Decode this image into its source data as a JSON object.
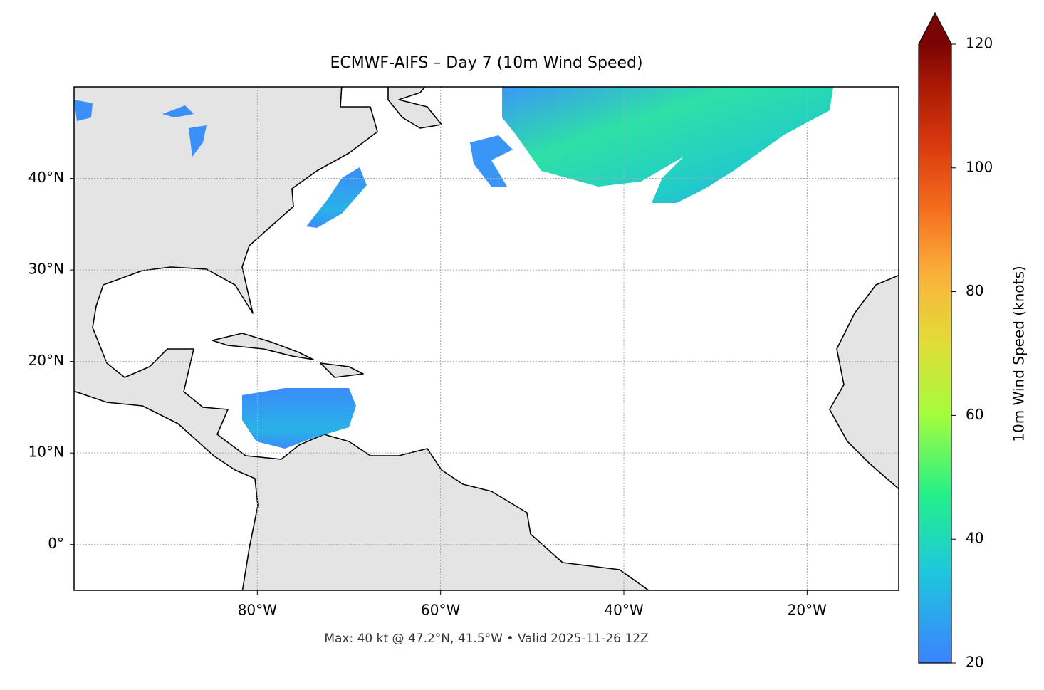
{
  "chart_data": {
    "type": "map",
    "title": "ECMWF-AIFS – Day 7 (10m Wind Speed)",
    "annotation": "Max: 40 kt @ 47.2°N, 41.5°W • Valid 2025-11-26 12Z",
    "xlim": [
      -100,
      -10
    ],
    "ylim": [
      -5,
      50
    ],
    "xticks": [
      {
        "value": -80,
        "label": "80°W"
      },
      {
        "value": -60,
        "label": "60°W"
      },
      {
        "value": -40,
        "label": "40°W"
      },
      {
        "value": -20,
        "label": "20°W"
      }
    ],
    "yticks": [
      {
        "value": 0,
        "label": "0°"
      },
      {
        "value": 10,
        "label": "10°N"
      },
      {
        "value": 20,
        "label": "20°N"
      },
      {
        "value": 30,
        "label": "30°N"
      },
      {
        "value": 40,
        "label": "40°N"
      }
    ],
    "grid": true,
    "colorbar": {
      "label": "10m Wind Speed (knots)",
      "lim": [
        20,
        120
      ],
      "ticks": [
        20,
        40,
        60,
        80,
        100,
        120
      ],
      "extend": "max"
    }
  }
}
